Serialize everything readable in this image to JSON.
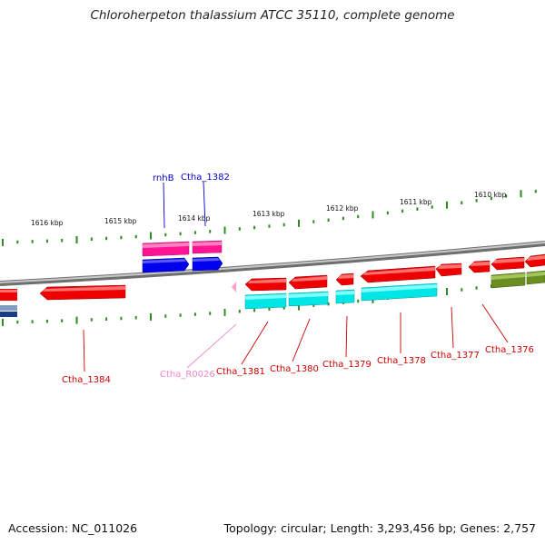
{
  "title": "Chloroherpeton thalassium ATCC 35110, complete genome",
  "footer": {
    "accession": "Accession: NC_011026",
    "summary": "Topology: circular; Length: 3,293,456 bp; Genes: 2,757"
  },
  "scale_labels": [
    "1616 kbp",
    "1615 kbp",
    "1614 kbp",
    "1613 kbp",
    "1612 kbp",
    "1611 kbp",
    "1610 kbp"
  ],
  "colors": {
    "backbone": "#8c8c8c",
    "ticks": "#2e8b20",
    "outer_gene": "#ff1493",
    "outer_cds": "#0000ee",
    "inner_gene": "#ee0000",
    "inner_cds": "#00e5e5",
    "rrna_pink": "#ff9ec8",
    "olive": "#6b8e23",
    "navy": "#1a3a8a",
    "label_blue": "#0000cc",
    "label_red": "#cc0000",
    "label_pink": "#ee88cc"
  },
  "gene_labels": [
    {
      "name": "rnhB",
      "color": "label_blue"
    },
    {
      "name": "Ctha_1382",
      "color": "label_blue"
    },
    {
      "name": "Ctha_1384",
      "color": "label_red"
    },
    {
      "name": "Ctha_R0026",
      "color": "label_pink"
    },
    {
      "name": "Ctha_1381",
      "color": "label_red"
    },
    {
      "name": "Ctha_1380",
      "color": "label_red"
    },
    {
      "name": "Ctha_1379",
      "color": "label_red"
    },
    {
      "name": "Ctha_1378",
      "color": "label_red"
    },
    {
      "name": "Ctha_1377",
      "color": "label_red"
    },
    {
      "name": "Ctha_1376",
      "color": "label_red"
    }
  ]
}
